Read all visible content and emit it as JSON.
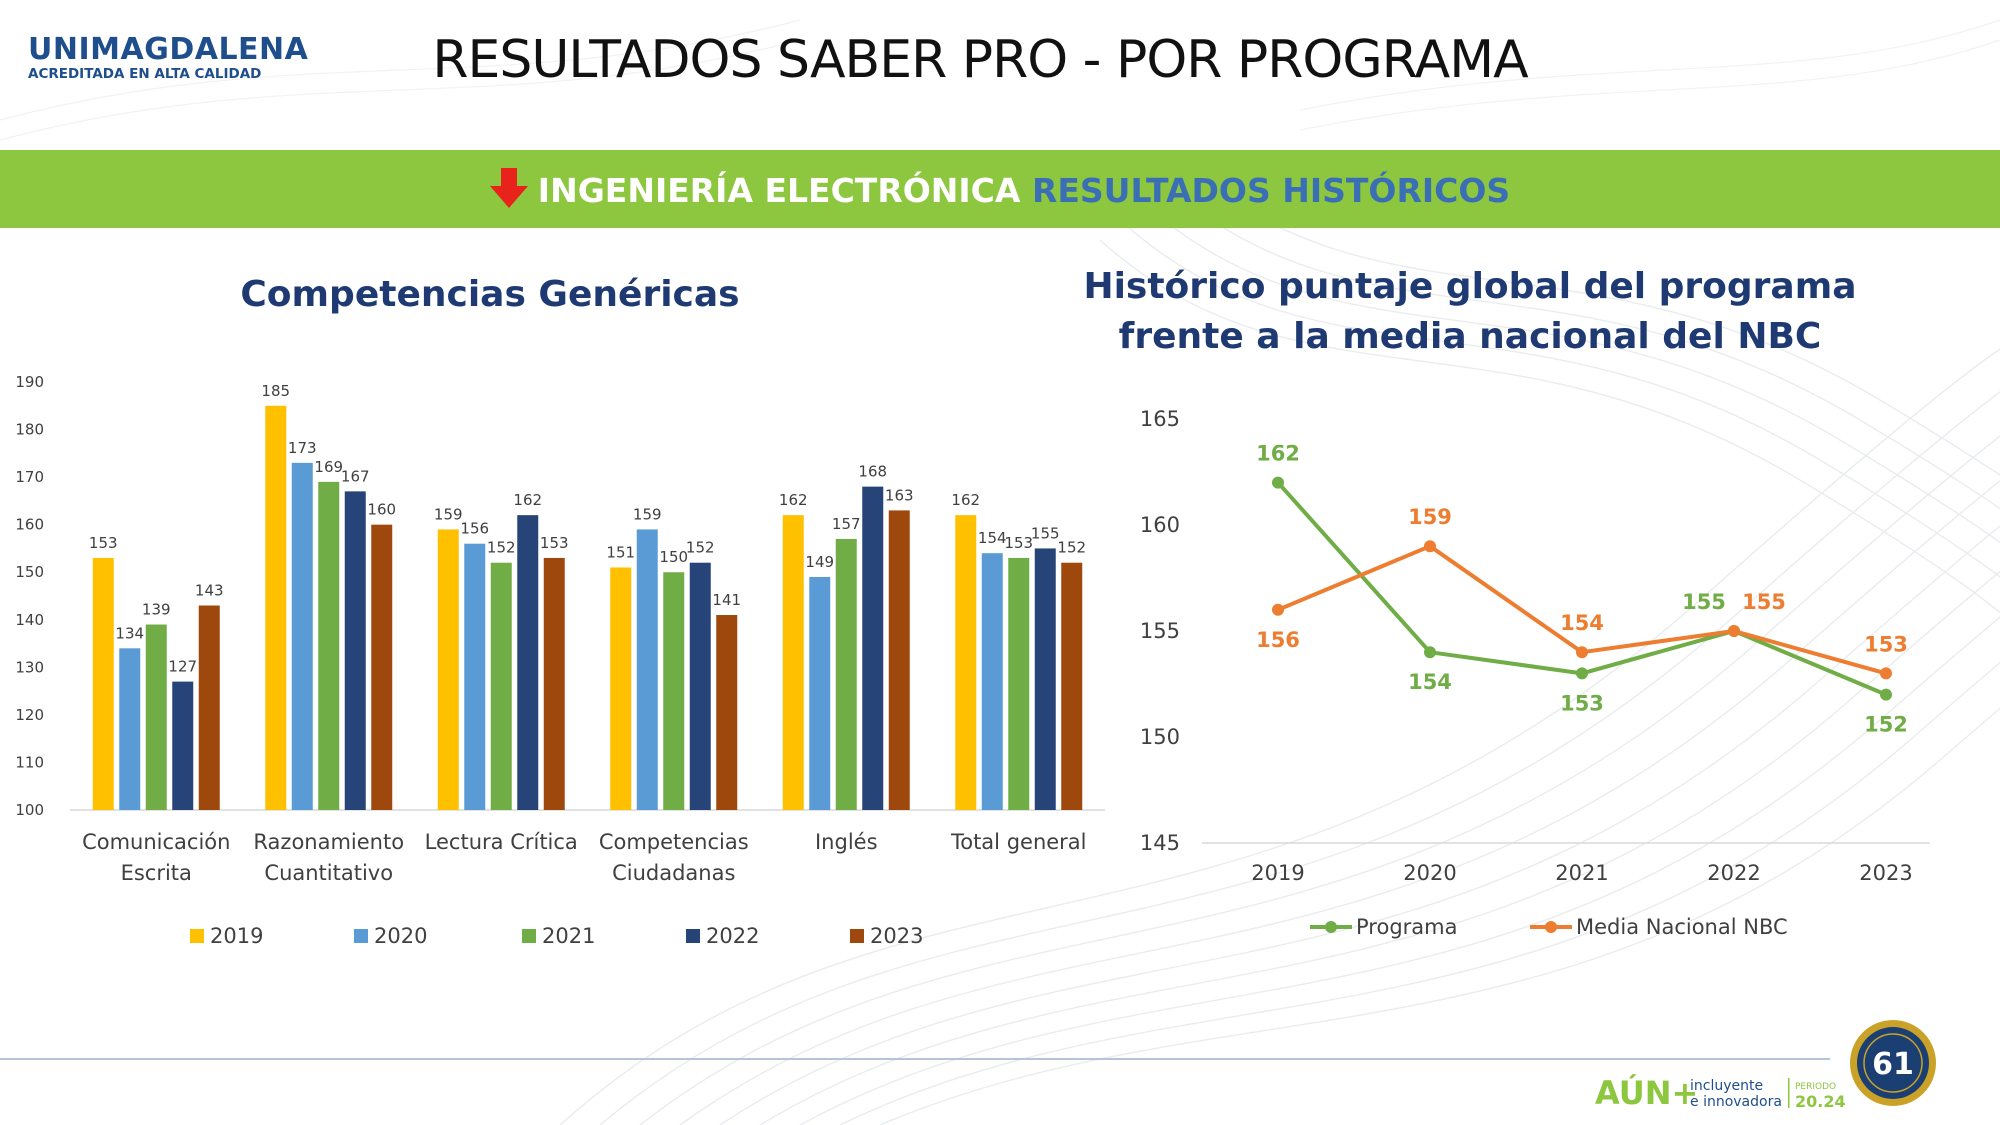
{
  "header": {
    "logo_name": "UNIMAGDALENA",
    "logo_tagline": "ACREDITADA EN ALTA CALIDAD",
    "title": "RESULTADOS SABER PRO - POR PROGRAMA"
  },
  "banner": {
    "icon": "down-arrow-icon",
    "program": "INGENIERÍA ELECTRÓNICA",
    "subtitle": "RESULTADOS HISTÓRICOS",
    "background": "#8dc63f",
    "program_color": "#ffffff",
    "subtitle_color": "#3a6fb6"
  },
  "chart_data": [
    {
      "type": "bar",
      "title": "Competencias Genéricas",
      "categories": [
        [
          "Comunicación",
          "Escrita"
        ],
        [
          "Razonamiento",
          "Cuantitativo"
        ],
        [
          "Lectura Crítica"
        ],
        [
          "Competencias",
          "Ciudadanas"
        ],
        [
          "Inglés"
        ],
        [
          "Total general"
        ]
      ],
      "series": [
        {
          "name": "2019",
          "color": "#ffc000",
          "values": [
            153,
            185,
            159,
            151,
            162,
            162
          ]
        },
        {
          "name": "2020",
          "color": "#5b9bd5",
          "values": [
            134,
            173,
            156,
            159,
            149,
            154
          ]
        },
        {
          "name": "2021",
          "color": "#70ad47",
          "values": [
            139,
            169,
            152,
            150,
            157,
            153
          ]
        },
        {
          "name": "2022",
          "color": "#264478",
          "values": [
            127,
            167,
            162,
            152,
            168,
            155
          ]
        },
        {
          "name": "2023",
          "color": "#9e480e",
          "values": [
            143,
            160,
            153,
            141,
            163,
            152
          ]
        }
      ],
      "ylim": [
        100,
        190
      ],
      "yticks": [
        100,
        110,
        120,
        130,
        140,
        150,
        160,
        170,
        180,
        190
      ],
      "grid": false,
      "legend": "bottom"
    },
    {
      "type": "line",
      "title": "Histórico puntaje global del programa frente a la media nacional del NBC",
      "title_lines": [
        "Histórico puntaje global del programa",
        "frente a la media nacional del NBC"
      ],
      "x": [
        "2019",
        "2020",
        "2021",
        "2022",
        "2023"
      ],
      "series": [
        {
          "name": "Programa",
          "color": "#70ad47",
          "values": [
            162,
            154,
            153,
            155,
            152
          ]
        },
        {
          "name": "Media Nacional NBC",
          "color": "#ed7d31",
          "values": [
            156,
            159,
            154,
            155,
            153
          ]
        }
      ],
      "ylim": [
        145,
        165
      ],
      "yticks": [
        145,
        150,
        155,
        160,
        165
      ],
      "grid": false,
      "legend": "bottom"
    }
  ],
  "footer": {
    "brand": "AÚN+",
    "tagline_1": "incluyente",
    "tagline_2": "e innovadora",
    "period_label": "PERIODO",
    "period_value": "20.24",
    "seal_number": "61"
  }
}
